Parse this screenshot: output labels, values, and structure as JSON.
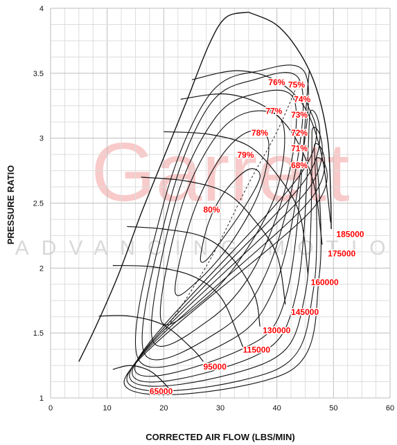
{
  "watermark": {
    "brand": "Garrett",
    "tagline": "ADVANCING MOTION",
    "color": "#f4a6a6",
    "tagline_color": "#c8c8c8"
  },
  "chart_data": {
    "type": "line",
    "xlabel": "CORRECTED AIR FLOW (LBS/MIN)",
    "ylabel": "PRESSURE RATIO",
    "xlim": [
      0,
      60
    ],
    "ylim": [
      1,
      4
    ],
    "x_ticks": [
      0,
      10,
      20,
      30,
      40,
      50,
      60
    ],
    "y_ticks": [
      1,
      1.5,
      2,
      2.5,
      3,
      3.5,
      4
    ],
    "grid": true,
    "label_color": "#ff0000",
    "surge_line": [
      [
        5,
        1.28
      ],
      [
        8,
        1.55
      ],
      [
        12,
        1.95
      ],
      [
        16,
        2.42
      ],
      [
        20,
        2.85
      ],
      [
        24,
        3.28
      ],
      [
        28,
        3.72
      ],
      [
        31,
        3.93
      ],
      [
        35,
        3.97
      ]
    ],
    "choke_line": [
      [
        35,
        3.97
      ],
      [
        40,
        3.87
      ],
      [
        44,
        3.66
      ],
      [
        47,
        3.38
      ],
      [
        49,
        2.98
      ],
      [
        49.5,
        2.55
      ],
      [
        49.6,
        2.3
      ]
    ],
    "speed_lines": [
      {
        "name": "65000",
        "points": [
          [
            11,
            1.22
          ],
          [
            14,
            1.25
          ],
          [
            17,
            1.22
          ],
          [
            19,
            1.16
          ],
          [
            21,
            1.07
          ]
        ],
        "label_at": [
          17.5,
          1.05
        ]
      },
      {
        "name": "95000",
        "points": [
          [
            8.5,
            1.63
          ],
          [
            14,
            1.63
          ],
          [
            20,
            1.56
          ],
          [
            25,
            1.38
          ],
          [
            27,
            1.28
          ]
        ],
        "label_at": [
          27,
          1.24
        ]
      },
      {
        "name": "115000",
        "points": [
          [
            11,
            2.02
          ],
          [
            18,
            2.01
          ],
          [
            25,
            1.94
          ],
          [
            30,
            1.78
          ],
          [
            33,
            1.5
          ],
          [
            34,
            1.39
          ]
        ],
        "label_at": [
          34,
          1.37
        ]
      },
      {
        "name": "130000",
        "points": [
          [
            13.5,
            2.32
          ],
          [
            20,
            2.3
          ],
          [
            27,
            2.24
          ],
          [
            32,
            2.08
          ],
          [
            36,
            1.8
          ],
          [
            37,
            1.55
          ]
        ],
        "label_at": [
          37.5,
          1.52
        ]
      },
      {
        "name": "145000",
        "points": [
          [
            16,
            2.7
          ],
          [
            24,
            2.67
          ],
          [
            31,
            2.58
          ],
          [
            36,
            2.37
          ],
          [
            40,
            2.1
          ],
          [
            41.5,
            1.72
          ]
        ],
        "label_at": [
          42.5,
          1.66
        ]
      },
      {
        "name": "160000",
        "points": [
          [
            20,
            3.05
          ],
          [
            28,
            3.03
          ],
          [
            35,
            2.94
          ],
          [
            40,
            2.72
          ],
          [
            44,
            2.42
          ],
          [
            45.5,
            1.95
          ]
        ],
        "label_at": [
          46,
          1.89
        ]
      },
      {
        "name": "175000",
        "points": [
          [
            23,
            3.3
          ],
          [
            31,
            3.34
          ],
          [
            38,
            3.24
          ],
          [
            43,
            3.02
          ],
          [
            46.5,
            2.65
          ],
          [
            48,
            2.18
          ]
        ],
        "label_at": [
          49,
          2.11
        ]
      },
      {
        "name": "185000",
        "points": [
          [
            25,
            3.45
          ],
          [
            33,
            3.52
          ],
          [
            40,
            3.44
          ],
          [
            45,
            3.23
          ],
          [
            48,
            2.85
          ],
          [
            49.5,
            2.35
          ]
        ],
        "label_at": [
          50.5,
          2.26
        ]
      }
    ],
    "efficiency_islands": [
      {
        "name": "80%",
        "points": [
          [
            26.5,
            2.08
          ],
          [
            28,
            2.36
          ],
          [
            31,
            2.6
          ],
          [
            35,
            2.76
          ],
          [
            37,
            2.7
          ],
          [
            34,
            2.45
          ],
          [
            30,
            2.2
          ],
          [
            27.5,
            2.06
          ],
          [
            26.5,
            2.08
          ]
        ],
        "label_at": [
          27,
          2.45
        ]
      },
      {
        "name": "79%",
        "points": [
          [
            22,
            1.82
          ],
          [
            25,
            2.4
          ],
          [
            30,
            2.85
          ],
          [
            35,
            3.05
          ],
          [
            38.5,
            2.98
          ],
          [
            37,
            2.6
          ],
          [
            32,
            2.2
          ],
          [
            26,
            1.9
          ],
          [
            22,
            1.82
          ]
        ],
        "label_at": [
          33,
          2.87
        ]
      },
      {
        "name": "78%",
        "points": [
          [
            19.5,
            1.6
          ],
          [
            23,
            2.45
          ],
          [
            29,
            3.0
          ],
          [
            35,
            3.2
          ],
          [
            41,
            3.12
          ],
          [
            40,
            2.6
          ],
          [
            34,
            2.1
          ],
          [
            27,
            1.75
          ],
          [
            19.5,
            1.6
          ]
        ],
        "label_at": [
          35.5,
          3.04
        ]
      },
      {
        "name": "77%",
        "points": [
          [
            18,
            1.45
          ],
          [
            22,
            2.5
          ],
          [
            29,
            3.15
          ],
          [
            36,
            3.34
          ],
          [
            43,
            3.3
          ],
          [
            42,
            2.7
          ],
          [
            36,
            2.0
          ],
          [
            28,
            1.6
          ],
          [
            18,
            1.45
          ]
        ],
        "label_at": [
          38,
          3.21
        ]
      },
      {
        "name": "76%",
        "points": [
          [
            16.5,
            1.35
          ],
          [
            21,
            2.5
          ],
          [
            28,
            3.25
          ],
          [
            36,
            3.45
          ],
          [
            44,
            3.45
          ],
          [
            43.5,
            2.8
          ],
          [
            38,
            1.95
          ],
          [
            30,
            1.52
          ],
          [
            16.5,
            1.35
          ]
        ],
        "label_at": [
          38.5,
          3.43
        ]
      },
      {
        "name": "75%",
        "points": [
          [
            15.5,
            1.3
          ],
          [
            20,
            2.5
          ],
          [
            28,
            3.33
          ],
          [
            37,
            3.52
          ],
          [
            45,
            3.5
          ],
          [
            44.5,
            2.85
          ],
          [
            40,
            1.9
          ],
          [
            32,
            1.45
          ],
          [
            15.5,
            1.3
          ]
        ],
        "label_at": [
          42,
          3.41
        ]
      },
      {
        "name": "74%",
        "points": [
          [
            15,
            1.26
          ],
          [
            44.6,
            2.75
          ],
          [
            45.3,
            3.3
          ],
          [
            45.5,
            3.42
          ],
          [
            42,
            1.85
          ],
          [
            34,
            1.38
          ],
          [
            15,
            1.26
          ]
        ],
        "label_at": [
          43,
          3.3
        ]
      },
      {
        "name": "73%",
        "points": [
          [
            14.5,
            1.22
          ],
          [
            45,
            2.68
          ],
          [
            45.8,
            3.18
          ],
          [
            43.5,
            1.82
          ],
          [
            36,
            1.32
          ],
          [
            14.5,
            1.22
          ]
        ],
        "label_at": [
          42.5,
          3.18
        ]
      },
      {
        "name": "72%",
        "points": [
          [
            14,
            1.19
          ],
          [
            45.4,
            2.6
          ],
          [
            46.2,
            3.05
          ],
          [
            45,
            1.8
          ],
          [
            38,
            1.27
          ],
          [
            14,
            1.19
          ]
        ],
        "label_at": [
          42.5,
          3.04
        ]
      },
      {
        "name": "71%",
        "points": [
          [
            13.5,
            1.16
          ],
          [
            45.8,
            2.52
          ],
          [
            46.6,
            2.93
          ],
          [
            46.5,
            1.85
          ],
          [
            40,
            1.22
          ],
          [
            13.5,
            1.16
          ]
        ],
        "label_at": [
          42.5,
          2.92
        ]
      },
      {
        "name": "68%",
        "points": [
          [
            13,
            1.13
          ],
          [
            46.2,
            2.45
          ],
          [
            47,
            2.83
          ],
          [
            47.5,
            1.95
          ],
          [
            42,
            1.2
          ],
          [
            13,
            1.13
          ]
        ],
        "label_at": [
          42.5,
          2.79
        ]
      }
    ],
    "dashed_line": [
      [
        20,
        1.5
      ],
      [
        28,
        2.05
      ],
      [
        35,
        2.65
      ],
      [
        40,
        3.05
      ],
      [
        44,
        3.45
      ]
    ]
  }
}
